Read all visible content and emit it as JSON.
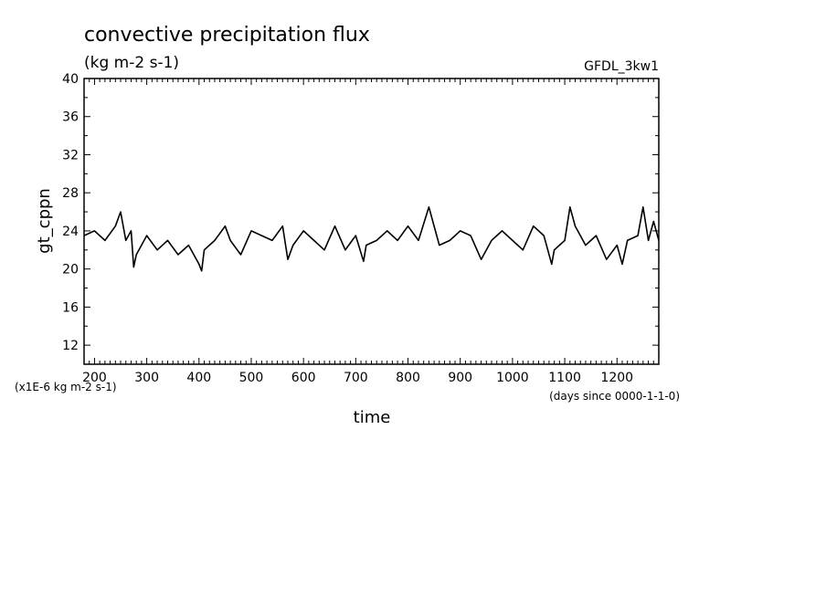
{
  "chart_data": {
    "type": "line",
    "title": "convective precipitation flux",
    "subtitle": "(kg m-2 s-1)",
    "tag": "GFDL_3kw1",
    "xlabel": "time",
    "x_units_note": "(days since 0000-1-1-0)",
    "ylabel": "gt_cppn",
    "y_units_note": "(x1E-6 kg m-2 s-1)",
    "xlim": [
      180,
      1280
    ],
    "ylim": [
      10,
      40
    ],
    "x_ticks": [
      200,
      300,
      400,
      500,
      600,
      700,
      800,
      900,
      1000,
      1100,
      1200
    ],
    "y_ticks": [
      12,
      16,
      20,
      24,
      28,
      32,
      36,
      40
    ],
    "grid": false,
    "series": [
      {
        "x": [
          180,
          200,
          220,
          240,
          250,
          260,
          270,
          275,
          280,
          300,
          320,
          340,
          360,
          380,
          400,
          405,
          410,
          430,
          450,
          460,
          480,
          500,
          520,
          540,
          560,
          570,
          580,
          600,
          620,
          640,
          660,
          680,
          700,
          715,
          720,
          740,
          760,
          780,
          800,
          820,
          840,
          860,
          880,
          900,
          920,
          940,
          960,
          980,
          1000,
          1020,
          1040,
          1060,
          1075,
          1080,
          1100,
          1110,
          1120,
          1140,
          1160,
          1180,
          1200,
          1210,
          1220,
          1240,
          1250,
          1260,
          1270,
          1280
        ],
        "y": [
          23.5,
          24.0,
          23.0,
          24.5,
          26.0,
          23.0,
          24.0,
          20.2,
          21.5,
          23.5,
          22.0,
          23.0,
          21.5,
          22.5,
          20.5,
          19.8,
          22.0,
          23.0,
          24.5,
          23.0,
          21.5,
          24.0,
          23.5,
          23.0,
          24.5,
          21.0,
          22.5,
          24.0,
          23.0,
          22.0,
          24.5,
          22.0,
          23.5,
          20.8,
          22.5,
          23.0,
          24.0,
          23.0,
          24.5,
          23.0,
          26.5,
          22.5,
          23.0,
          24.0,
          23.5,
          21.0,
          23.0,
          24.0,
          23.0,
          22.0,
          24.5,
          23.5,
          20.5,
          22.0,
          23.0,
          26.5,
          24.5,
          22.5,
          23.5,
          21.0,
          22.5,
          20.5,
          23.0,
          23.5,
          26.5,
          23.0,
          25.0,
          23.0
        ]
      }
    ]
  }
}
